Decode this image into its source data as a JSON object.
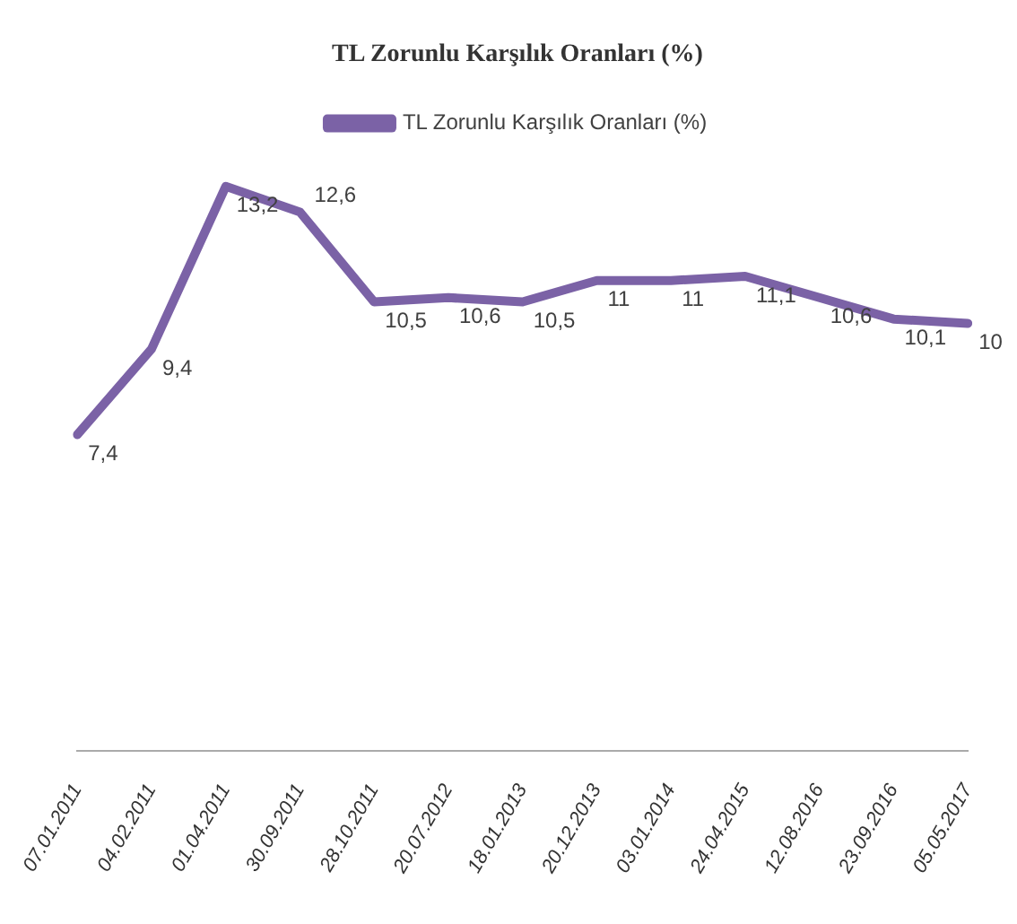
{
  "chart_data": {
    "type": "line",
    "title": "TL Zorunlu Karşılık Oranları (%)",
    "categories": [
      "07.01.2011",
      "04.02.2011",
      "01.04.2011",
      "30.09.2011",
      "28.10.2011",
      "20.07.2012",
      "18.01.2013",
      "20.12.2013",
      "03.01.2014",
      "24.04.2015",
      "12.08.2016",
      "23.09.2016",
      "05.05.2017"
    ],
    "series": [
      {
        "name": "TL Zorunlu Karşılık Oranları (%)",
        "color": "#7b62a6",
        "values": [
          7.4,
          9.4,
          13.2,
          12.6,
          10.5,
          10.6,
          10.5,
          11,
          11,
          11.1,
          10.6,
          10.1,
          10
        ],
        "value_labels": [
          "7,4",
          "9,4",
          "13,2",
          "12,6",
          "10,5",
          "10,6",
          "10,5",
          "11",
          "11",
          "11,1",
          "10,6",
          "10,1",
          "10"
        ]
      }
    ],
    "legend": "top",
    "grid": false,
    "marker": "none",
    "line_style": "solid"
  }
}
